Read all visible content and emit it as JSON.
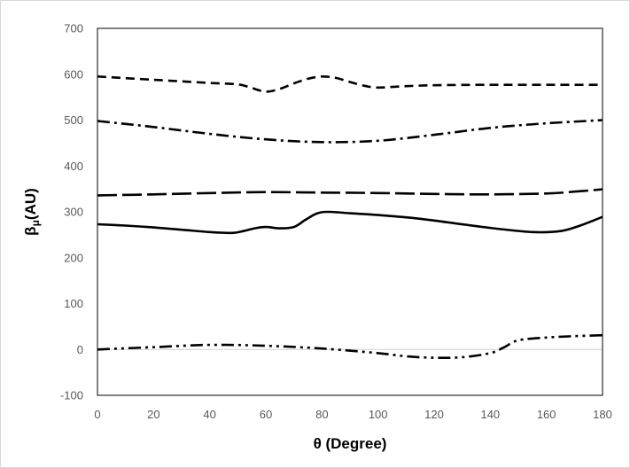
{
  "chart_data": {
    "type": "line",
    "xlabel": "θ (Degree)",
    "ylabel_main": "β",
    "ylabel_sub": "μ",
    "ylabel_unit": "(AU)",
    "xlim": [
      0,
      180
    ],
    "ylim": [
      -100,
      700
    ],
    "x_ticks": [
      "0",
      "20",
      "40",
      "60",
      "80",
      "100",
      "120",
      "140",
      "160",
      "180"
    ],
    "y_ticks": [
      "700",
      "600",
      "500",
      "400",
      "300",
      "200",
      "100",
      "0",
      "-100"
    ],
    "grid": false,
    "legend": "none",
    "series": [
      {
        "style": "short-dash",
        "x": [
          0,
          20,
          40,
          50,
          55,
          60,
          65,
          70,
          75,
          80,
          85,
          90,
          95,
          100,
          110,
          120,
          140,
          160,
          180
        ],
        "y": [
          595,
          588,
          581,
          578,
          570,
          562,
          568,
          580,
          590,
          595,
          592,
          583,
          575,
          571,
          574,
          576,
          577,
          577,
          577
        ]
      },
      {
        "style": "dash-dot",
        "x": [
          0,
          20,
          40,
          60,
          80,
          100,
          120,
          140,
          160,
          180
        ],
        "y": [
          498,
          485,
          470,
          458,
          452,
          455,
          468,
          483,
          493,
          500
        ]
      },
      {
        "style": "long-dash",
        "x": [
          0,
          20,
          40,
          60,
          80,
          100,
          120,
          140,
          160,
          170,
          180
        ],
        "y": [
          336,
          338,
          341,
          343,
          342,
          341,
          339,
          338,
          340,
          344,
          349
        ]
      },
      {
        "style": "solid",
        "x": [
          0,
          10,
          20,
          30,
          40,
          48,
          52,
          56,
          60,
          65,
          70,
          74,
          78,
          82,
          90,
          100,
          110,
          120,
          140,
          155,
          165,
          172,
          180
        ],
        "y": [
          273,
          270,
          266,
          261,
          256,
          254,
          258,
          264,
          267,
          264,
          267,
          282,
          296,
          300,
          297,
          293,
          288,
          281,
          265,
          256,
          258,
          270,
          289
        ]
      },
      {
        "style": "dash-dot-dot",
        "x": [
          0,
          20,
          40,
          60,
          80,
          100,
          110,
          120,
          130,
          140,
          145,
          150,
          160,
          170,
          180
        ],
        "y": [
          0,
          5,
          10,
          8,
          2,
          -8,
          -15,
          -18,
          -17,
          -8,
          5,
          20,
          26,
          29,
          31
        ]
      }
    ]
  }
}
